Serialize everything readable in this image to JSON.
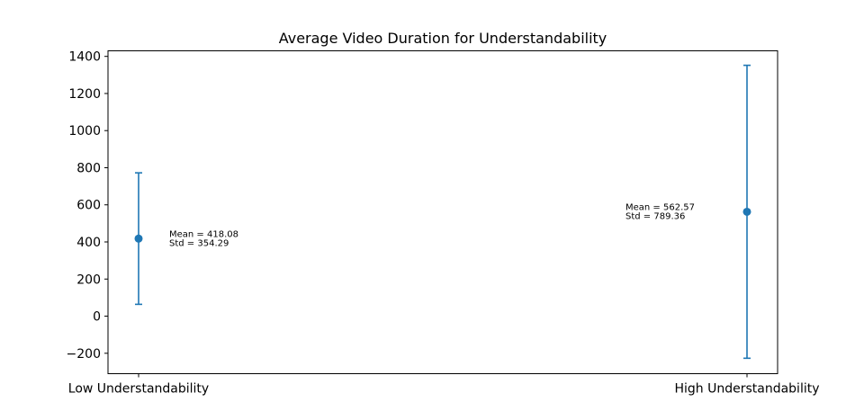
{
  "chart_data": {
    "type": "errorbar",
    "title": "Average Video Duration for Understandability",
    "xlabel": "",
    "ylabel": "",
    "categories": [
      "Low Understandability",
      "High Understandability"
    ],
    "means": [
      418.08,
      562.57
    ],
    "stds": [
      354.29,
      789.36
    ],
    "ylim": [
      -310,
      1430
    ],
    "yticks": [
      -200,
      0,
      200,
      400,
      600,
      800,
      1000,
      1200,
      1400
    ],
    "annotations": [
      [
        "Mean = 418.08",
        "Std = 354.29"
      ],
      [
        "Mean = 562.57",
        "Std = 789.36"
      ]
    ],
    "grid": false,
    "color": "#1f77b4"
  }
}
